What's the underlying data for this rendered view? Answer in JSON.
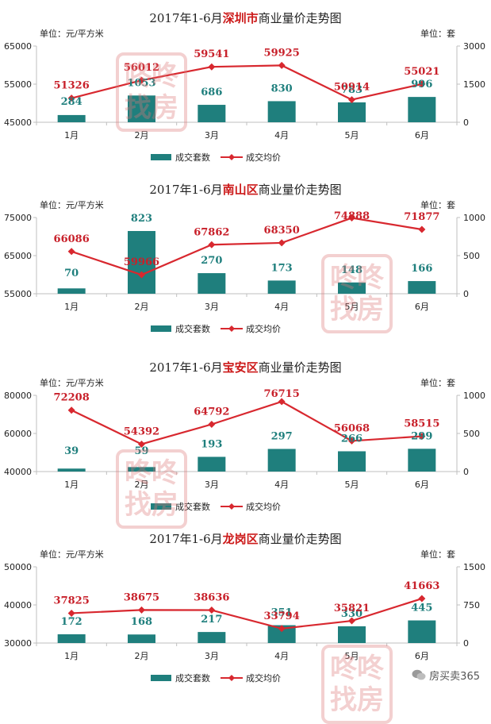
{
  "watermark": {
    "line1": "咚咚",
    "line2": "找房"
  },
  "footer": {
    "brand": "房买卖365",
    "icon": "wechat-icon"
  },
  "colors": {
    "bar": "#1f7f7d",
    "line": "#d8282f",
    "label_bar": "#1f7f7d",
    "label_line": "#c8202a",
    "district": "#cc1a1a"
  },
  "chart_data": [
    {
      "type": "bar+line",
      "title_prefix": "2017年1-6月",
      "title_highlight": "深圳市",
      "title_suffix": "商业量价走势图",
      "left_unit": "单位：元/平方米",
      "right_unit": "单位：套",
      "categories": [
        "1月",
        "2月",
        "3月",
        "4月",
        "5月",
        "6月"
      ],
      "left_ticks": [
        "45000",
        "55000",
        "65000"
      ],
      "left_ylim": [
        45000,
        65000
      ],
      "right_ticks": [
        "0",
        "1500",
        "3000"
      ],
      "right_ylim": [
        0,
        3000
      ],
      "series": [
        {
          "name": "成交套数",
          "type": "bar",
          "axis": "right",
          "values": [
            284,
            1053,
            686,
            830,
            783,
            996
          ]
        },
        {
          "name": "成交均价",
          "type": "line",
          "axis": "left",
          "values": [
            51326,
            56012,
            59541,
            59925,
            50914,
            55021
          ]
        }
      ]
    },
    {
      "type": "bar+line",
      "title_prefix": "2017年1-6月",
      "title_highlight": "南山区",
      "title_suffix": "商业量价走势图",
      "left_unit": "单位：元/平方米",
      "right_unit": "单位：套",
      "categories": [
        "1月",
        "2月",
        "3月",
        "4月",
        "5月",
        "6月"
      ],
      "left_ticks": [
        "55000",
        "65000",
        "75000"
      ],
      "left_ylim": [
        55000,
        75000
      ],
      "right_ticks": [
        "0",
        "500",
        "1000"
      ],
      "right_ylim": [
        0,
        1000
      ],
      "series": [
        {
          "name": "成交套数",
          "type": "bar",
          "axis": "right",
          "values": [
            70,
            823,
            270,
            173,
            148,
            166
          ]
        },
        {
          "name": "成交均价",
          "type": "line",
          "axis": "left",
          "values": [
            66086,
            59966,
            67862,
            68350,
            74888,
            71877
          ]
        }
      ]
    },
    {
      "type": "bar+line",
      "title_prefix": "2017年1-6月",
      "title_highlight": "宝安区",
      "title_suffix": "商业量价走势图",
      "left_unit": "单位：元/平方米",
      "right_unit": "单位：套",
      "categories": [
        "1月",
        "2月",
        "3月",
        "4月",
        "5月",
        "6月"
      ],
      "left_ticks": [
        "40000",
        "60000",
        "80000"
      ],
      "left_ylim": [
        40000,
        80000
      ],
      "right_ticks": [
        "0",
        "500",
        "1000"
      ],
      "right_ylim": [
        0,
        1000
      ],
      "series": [
        {
          "name": "成交套数",
          "type": "bar",
          "axis": "right",
          "values": [
            39,
            59,
            193,
            297,
            266,
            299
          ]
        },
        {
          "name": "成交均价",
          "type": "line",
          "axis": "left",
          "values": [
            72208,
            54392,
            64792,
            76715,
            56068,
            58515
          ]
        }
      ]
    },
    {
      "type": "bar+line",
      "title_prefix": "2017年1-6月",
      "title_highlight": "龙岗区",
      "title_suffix": "商业量价走势图",
      "left_unit": "单位：元/平方米",
      "right_unit": "单位：套",
      "categories": [
        "1月",
        "2月",
        "3月",
        "4月",
        "5月",
        "6月"
      ],
      "left_ticks": [
        "30000",
        "40000",
        "50000"
      ],
      "left_ylim": [
        30000,
        50000
      ],
      "right_ticks": [
        "0",
        "750",
        "1500"
      ],
      "right_ylim": [
        0,
        1500
      ],
      "series": [
        {
          "name": "成交套数",
          "type": "bar",
          "axis": "right",
          "values": [
            172,
            168,
            217,
            351,
            330,
            445
          ]
        },
        {
          "name": "成交均价",
          "type": "line",
          "axis": "left",
          "values": [
            37825,
            38675,
            38636,
            33794,
            35821,
            41663
          ]
        }
      ]
    }
  ]
}
